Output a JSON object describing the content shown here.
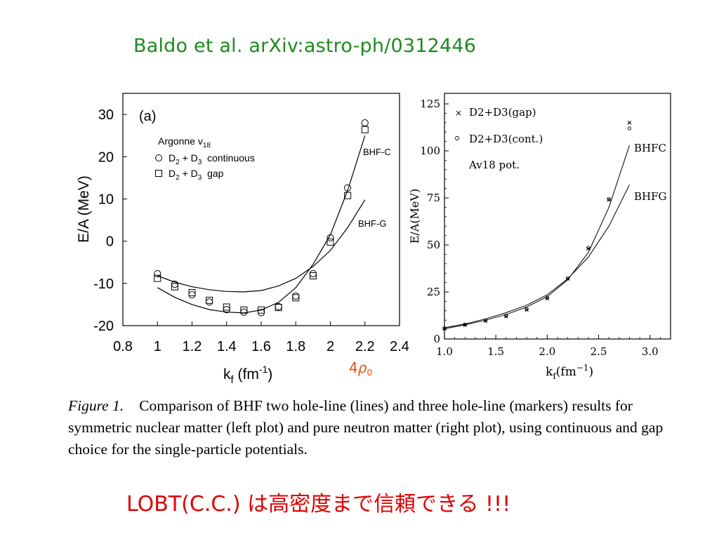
{
  "reference": "Baldo et al.  arXiv:astro-ph/0312446",
  "chart_data": [
    {
      "type": "scatter",
      "panel_label": "(a)",
      "xlabel": "k",
      "xlabel_sub": "f",
      "xlabel_unit": " (fm",
      "xlabel_exp": "-1",
      "xlabel_close": ")",
      "ylabel": "E/A (MeV)",
      "xlim": [
        0.8,
        2.4
      ],
      "ylim": [
        -20,
        35
      ],
      "xticks": [
        "0.8",
        "1",
        "1.2",
        "1.4",
        "1.6",
        "1.8",
        "2",
        "2.2",
        "2.4"
      ],
      "yticks": [
        "-20",
        "-10",
        "0",
        "10",
        "20",
        "30"
      ],
      "legend_title": "Argonne v",
      "legend_title_sub": "18",
      "legend": [
        {
          "marker": "circle",
          "text_a": "D",
          "sub_a": "2",
          "text_b": " + D",
          "sub_b": "3",
          "text_c": "  continuous"
        },
        {
          "marker": "square",
          "text_a": "D",
          "sub_a": "2",
          "text_b": " + D",
          "sub_b": "3",
          "text_c": "  gap"
        }
      ],
      "annotation": {
        "num": "4",
        "rho": "ρ",
        "sub": "0"
      },
      "series": [
        {
          "name": "BHF-C",
          "style": "line",
          "x": [
            1.0,
            1.1,
            1.2,
            1.3,
            1.4,
            1.5,
            1.6,
            1.7,
            1.8,
            1.9,
            2.0,
            2.1,
            2.2
          ],
          "y": [
            -11.0,
            -13.3,
            -15.0,
            -16.2,
            -16.8,
            -17.0,
            -16.3,
            -14.5,
            -11.0,
            -5.5,
            1.5,
            12.0,
            25.0
          ]
        },
        {
          "name": "BHF-G",
          "style": "line",
          "x": [
            1.0,
            1.1,
            1.2,
            1.3,
            1.4,
            1.5,
            1.6,
            1.7,
            1.8,
            1.9,
            2.0,
            2.1,
            2.2
          ],
          "y": [
            -8.2,
            -9.7,
            -10.8,
            -11.5,
            -11.9,
            -12.0,
            -11.7,
            -10.6,
            -8.8,
            -6.0,
            -2.2,
            3.2,
            9.8
          ]
        },
        {
          "name": "D2 + D3 continuous",
          "style": "circle",
          "x": [
            1.0,
            1.1,
            1.2,
            1.3,
            1.4,
            1.5,
            1.6,
            1.7,
            1.8,
            1.9,
            2.0,
            2.1,
            2.2
          ],
          "y": [
            -7.7,
            -10.2,
            -12.7,
            -14.4,
            -16.2,
            -16.8,
            -16.9,
            -15.5,
            -13.0,
            -7.7,
            0.8,
            12.6,
            28.0
          ]
        },
        {
          "name": "D2 + D3 gap",
          "style": "square",
          "x": [
            1.0,
            1.1,
            1.2,
            1.3,
            1.4,
            1.5,
            1.6,
            1.7,
            1.8,
            1.9,
            2.0,
            2.1,
            2.2
          ],
          "y": [
            -8.8,
            -10.8,
            -12.2,
            -14.0,
            -15.6,
            -16.3,
            -16.3,
            -15.7,
            -13.4,
            -8.2,
            -0.2,
            10.8,
            26.4
          ]
        }
      ]
    },
    {
      "type": "scatter",
      "xlabel": "k",
      "xlabel_sub": "f",
      "xlabel_unit": "(fm",
      "xlabel_exp": "−1",
      "xlabel_close": ")",
      "ylabel": "E/A(MeV)",
      "xlim": [
        1.0,
        3.2
      ],
      "ylim": [
        0,
        125
      ],
      "xticks": [
        "1.0",
        "1.5",
        "2.0",
        "2.5",
        "3.0"
      ],
      "yticks": [
        "0",
        "25",
        "50",
        "75",
        "100",
        "125"
      ],
      "legend": [
        {
          "marker": "cross",
          "text": "D2+D3(gap)"
        },
        {
          "marker": "circle",
          "text": "D2+D3(cont.)"
        },
        {
          "marker": "none",
          "text": "Av18 pot."
        }
      ],
      "series": [
        {
          "name": "BHFC",
          "style": "line",
          "x": [
            1.0,
            1.2,
            1.4,
            1.6,
            1.8,
            2.0,
            2.2,
            2.4,
            2.6,
            2.8
          ],
          "y": [
            5.5,
            7.5,
            10.0,
            13.0,
            17.0,
            22.5,
            31.5,
            46.0,
            70.0,
            103.0
          ]
        },
        {
          "name": "BHFG",
          "style": "line",
          "x": [
            1.0,
            1.2,
            1.4,
            1.6,
            1.8,
            2.0,
            2.2,
            2.4,
            2.6,
            2.8
          ],
          "y": [
            6.0,
            8.0,
            10.7,
            14.0,
            18.0,
            23.5,
            32.0,
            43.5,
            60.0,
            82.0
          ]
        },
        {
          "name": "D2+D3(gap)",
          "style": "cross",
          "x": [
            1.0,
            1.2,
            1.4,
            1.6,
            1.8,
            2.0,
            2.2,
            2.4,
            2.6,
            2.8
          ],
          "y": [
            5.5,
            7.5,
            9.6,
            12.0,
            15.5,
            21.5,
            32.0,
            48.0,
            74.0,
            115.0
          ]
        },
        {
          "name": "D2+D3(cont.)",
          "style": "circle",
          "x": [
            1.0,
            1.2,
            1.4,
            1.6,
            1.8,
            2.0,
            2.2,
            2.4,
            2.6,
            2.8
          ],
          "y": [
            5.6,
            7.7,
            9.9,
            12.4,
            15.9,
            22.0,
            32.3,
            48.5,
            74.4,
            112.0
          ]
        }
      ]
    }
  ],
  "caption": {
    "figure_label": "Figure 1.",
    "text": "Comparison of BHF two hole-line (lines) and three hole-line (markers) results for symmetric nuclear matter (left plot) and pure neutron matter (right plot), using continuous and gap choice for the single-particle potentials."
  },
  "conclusion": "LOBT(C.C.) は高密度まで信頼できる !!!",
  "colors": {
    "reference": "#1f8a1f",
    "conclusion": "#e00000",
    "annotation": "#e85000"
  }
}
